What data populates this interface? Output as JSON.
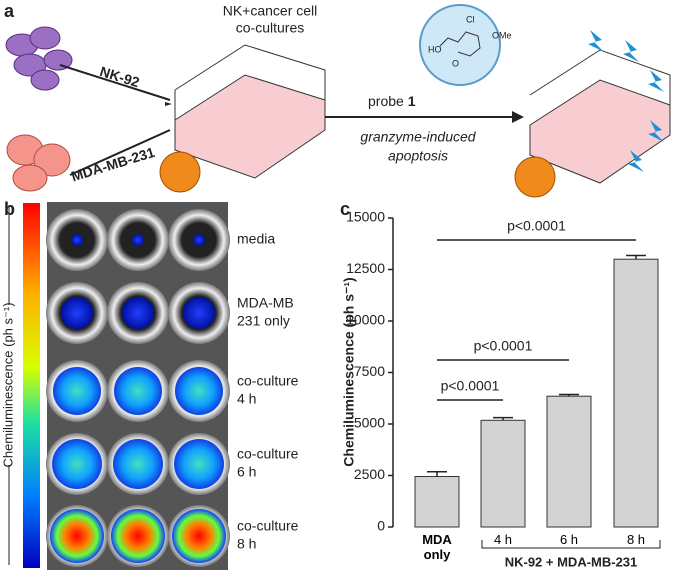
{
  "panel_a": {
    "letter": "a",
    "flask_caption": [
      "NK+cancer cell",
      "co-cultures"
    ],
    "nk_label": "NK-92",
    "mda_label": "MDA-MB-231",
    "probe_text": "probe ",
    "probe_number": "1",
    "mechanism": [
      "granzyme-induced",
      "apoptosis"
    ],
    "molecule": {
      "cl": "Cl",
      "ome": "OMe",
      "ho": "HO",
      "o": "O"
    }
  },
  "panel_b": {
    "letter": "b",
    "axis_label": "Chemiluminescence (ph s⁻¹)",
    "rows": [
      [
        "media"
      ],
      [
        "MDA-MB",
        "231 only"
      ],
      [
        "co-culture",
        "4 h"
      ],
      [
        "co-culture",
        "6 h"
      ],
      [
        "co-culture",
        "8 h"
      ]
    ]
  },
  "panel_c": {
    "letter": "c"
  },
  "chart_data": {
    "type": "bar",
    "ylabel": "Chemiluminescence (ph s⁻¹)",
    "categories": [
      "MDA only",
      "4 h",
      "6 h",
      "8 h"
    ],
    "values": [
      2450,
      5180,
      6350,
      13000
    ],
    "errors": [
      230,
      130,
      80,
      180
    ],
    "color": "#d3d3d3",
    "ylim": [
      0,
      15000
    ],
    "yticks": [
      0,
      2500,
      5000,
      7500,
      10000,
      12500,
      15000
    ],
    "group_label": "NK-92 + MDA-MB-231",
    "annotations": [
      "p<0.0001",
      "p<0.0001",
      "p<0.0001"
    ]
  }
}
